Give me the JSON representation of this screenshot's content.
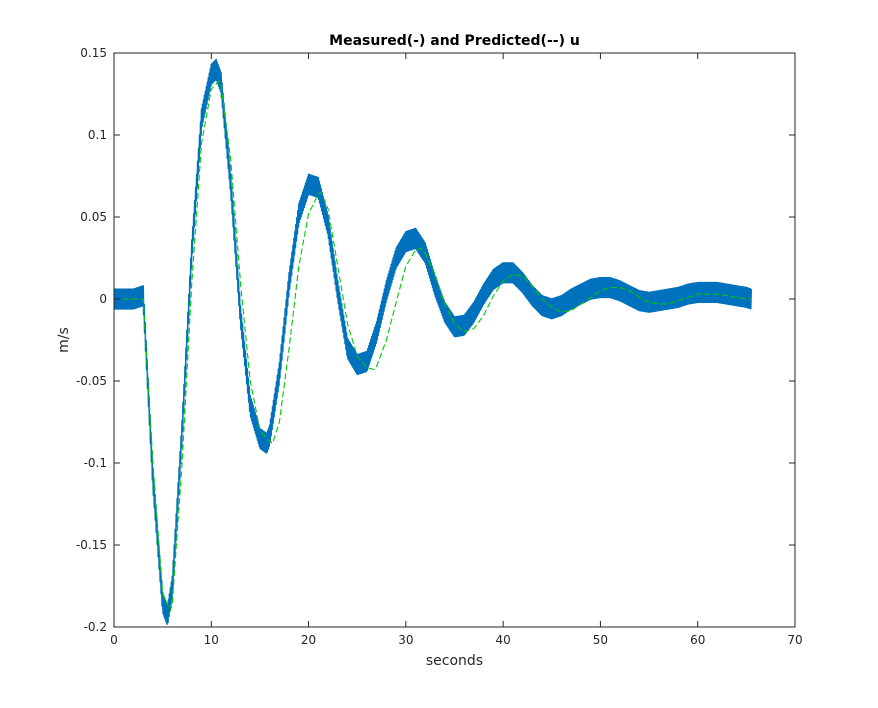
{
  "chart_data": {
    "type": "line",
    "title": "Measured(-) and Predicted(--) u",
    "xlabel": "seconds",
    "ylabel": "m/s",
    "xlim": [
      0,
      70
    ],
    "ylim": [
      -0.2,
      0.15
    ],
    "x_ticks": [
      0,
      10,
      20,
      30,
      40,
      50,
      60,
      70
    ],
    "x_tick_labels": [
      "0",
      "10",
      "20",
      "30",
      "40",
      "50",
      "60",
      "70"
    ],
    "y_ticks": [
      -0.2,
      -0.15,
      -0.1,
      -0.05,
      0,
      0.05,
      0.1,
      0.15
    ],
    "y_tick_labels": [
      "-0.2",
      "-0.15",
      "-0.1",
      "-0.05",
      "0",
      "0.05",
      "0.1",
      "0.15"
    ],
    "grid": false,
    "box": true,
    "series": [
      {
        "style": "solid",
        "color": "#0072BD",
        "noise_band": 0.006,
        "x": [
          0,
          1,
          2,
          3,
          4,
          5,
          5.5,
          6,
          7,
          8,
          9,
          10,
          10.5,
          11,
          12,
          13,
          14,
          15,
          15.7,
          16,
          17,
          18,
          19,
          20,
          21,
          22,
          23,
          24,
          25,
          26,
          27,
          28,
          29,
          30,
          31,
          32,
          33,
          34,
          35,
          36,
          37,
          38,
          39,
          40,
          41,
          42,
          43,
          44,
          45,
          46,
          47,
          48,
          49,
          50,
          51,
          52,
          53,
          54,
          55,
          56,
          57,
          58,
          59,
          60,
          61,
          62,
          63,
          64,
          65,
          65.5
        ],
        "y": [
          0,
          0,
          0,
          0.002,
          -0.11,
          -0.185,
          -0.193,
          -0.175,
          -0.08,
          0.03,
          0.11,
          0.137,
          0.14,
          0.132,
          0.07,
          -0.01,
          -0.065,
          -0.085,
          -0.088,
          -0.083,
          -0.045,
          0.01,
          0.052,
          0.07,
          0.068,
          0.045,
          0.005,
          -0.03,
          -0.04,
          -0.038,
          -0.02,
          0.005,
          0.025,
          0.035,
          0.037,
          0.028,
          0.008,
          -0.008,
          -0.017,
          -0.016,
          -0.008,
          0.003,
          0.012,
          0.016,
          0.016,
          0.01,
          0.002,
          -0.004,
          -0.006,
          -0.004,
          0.0,
          0.003,
          0.006,
          0.007,
          0.007,
          0.005,
          0.002,
          -0.001,
          -0.002,
          -0.001,
          0.0,
          0.001,
          0.003,
          0.004,
          0.004,
          0.004,
          0.003,
          0.002,
          0.001,
          0.0
        ]
      },
      {
        "style": "dashed",
        "color": "#00C800",
        "x": [
          0,
          1,
          2,
          3,
          4,
          5,
          5.8,
          6,
          7,
          8,
          9,
          10,
          10.8,
          11,
          12,
          13,
          14,
          15,
          16,
          16.3,
          17,
          18,
          19,
          20,
          21,
          21.3,
          22,
          23,
          24,
          25,
          26,
          26.8,
          27,
          28,
          29,
          30,
          31,
          31.5,
          32,
          33,
          34,
          35,
          36,
          37,
          38,
          39,
          40,
          41,
          42,
          43,
          44,
          45,
          46,
          47,
          48,
          49,
          50,
          51,
          52,
          53,
          54,
          55,
          56,
          57,
          58,
          59,
          60,
          61,
          62,
          63,
          64,
          65,
          65.5
        ],
        "y": [
          0,
          0,
          0,
          0,
          -0.1,
          -0.18,
          -0.19,
          -0.185,
          -0.1,
          0.01,
          0.095,
          0.128,
          0.133,
          0.13,
          0.085,
          0.01,
          -0.05,
          -0.08,
          -0.087,
          -0.088,
          -0.075,
          -0.03,
          0.02,
          0.052,
          0.064,
          0.065,
          0.055,
          0.02,
          -0.015,
          -0.035,
          -0.042,
          -0.043,
          -0.041,
          -0.025,
          -0.002,
          0.02,
          0.03,
          0.031,
          0.028,
          0.015,
          -0.003,
          -0.015,
          -0.02,
          -0.018,
          -0.01,
          0.002,
          0.011,
          0.015,
          0.014,
          0.008,
          0.0,
          -0.005,
          -0.008,
          -0.007,
          -0.003,
          0.001,
          0.005,
          0.007,
          0.007,
          0.005,
          0.001,
          -0.002,
          -0.003,
          -0.003,
          -0.001,
          0.001,
          0.003,
          0.003,
          0.003,
          0.002,
          0.001,
          0.0,
          0.0
        ]
      }
    ]
  }
}
